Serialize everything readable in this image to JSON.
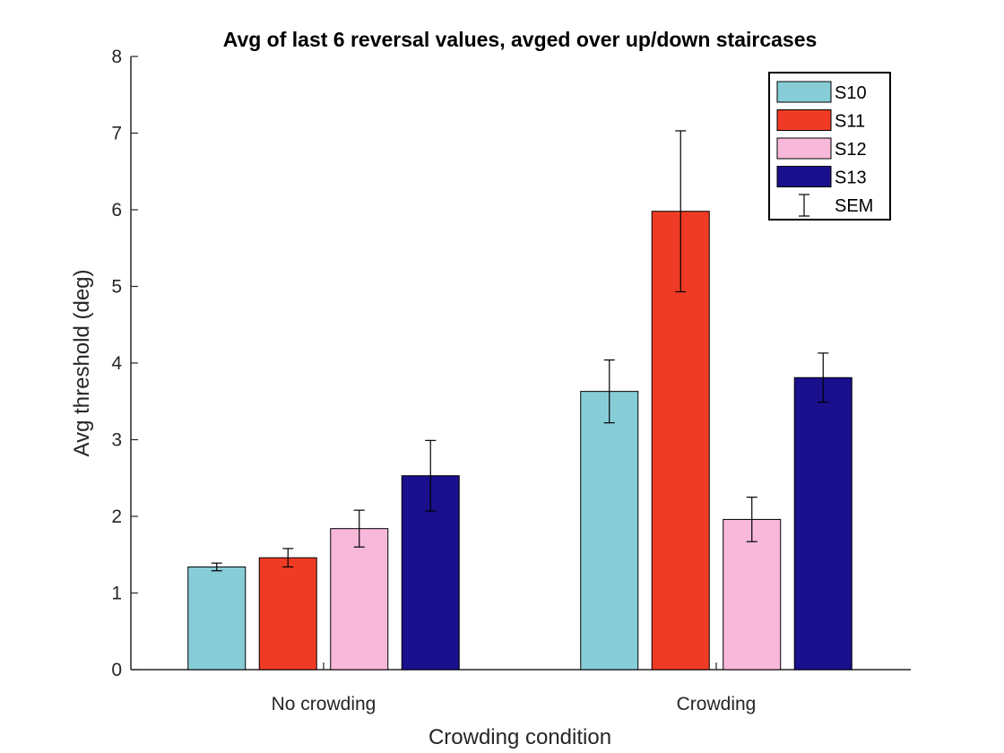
{
  "chart_data": {
    "type": "bar",
    "title": "Avg of last 6 reversal values, avged over up/down staircases",
    "xlabel": "Crowding condition",
    "ylabel": "Avg threshold (deg)",
    "categories": [
      "No crowding",
      "Crowding"
    ],
    "ylim": [
      0,
      8
    ],
    "yticks": [
      0,
      1,
      2,
      3,
      4,
      5,
      6,
      7,
      8
    ],
    "grid": false,
    "legend_position": "top-right",
    "series": [
      {
        "name": "S10",
        "color": "#87cdd7",
        "values": [
          1.34,
          3.63
        ],
        "sem": [
          0.05,
          0.41
        ]
      },
      {
        "name": "S11",
        "color": "#ef3b25",
        "values": [
          1.46,
          5.98
        ],
        "sem": [
          0.12,
          1.05
        ]
      },
      {
        "name": "S12",
        "color": "#f8b8da",
        "values": [
          1.84,
          1.96
        ],
        "sem": [
          0.24,
          0.29
        ]
      },
      {
        "name": "S13",
        "color": "#1a0f8c",
        "values": [
          2.53,
          3.81
        ],
        "sem": [
          0.46,
          0.32
        ]
      }
    ],
    "error_legend_label": "SEM"
  }
}
